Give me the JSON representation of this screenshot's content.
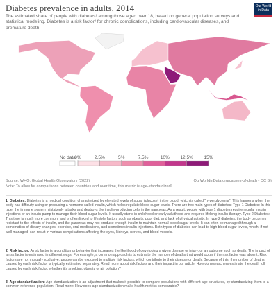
{
  "header": {
    "title": "Diabetes prevalence in adults, 2014",
    "subtitle": "The estimated share of people with diabetes¹ among those aged over 18, based on general population surveys and statistical modeling. Diabetes is a risk factor² for chronic complications, including cardiovascular diseases, and premature death.",
    "logo": "Our World in Data"
  },
  "legend": {
    "no_data": "No data",
    "no_data_color": "#ffffff",
    "bins": [
      {
        "value": 0,
        "label": "0%"
      },
      {
        "value": 2.5,
        "label": "2.5%"
      },
      {
        "value": 5,
        "label": "5%"
      },
      {
        "value": 7.5,
        "label": "7.5%"
      },
      {
        "value": 10,
        "label": "10%"
      },
      {
        "value": 12.5,
        "label": "12.5%"
      },
      {
        "value": 15,
        "label": "15%"
      }
    ],
    "colors": [
      "#fde0e6",
      "#f7b9c9",
      "#ef8fad",
      "#e0609a",
      "#c2378c",
      "#8e1a78"
    ]
  },
  "footer": {
    "source": "Source: WHO, Global Health Observatory (2022)",
    "url": "OurWorldinData.org/causes-of-death • CC BY",
    "note": "Note: To allow for comparisons between countries and over time, this metric is age-standardized³."
  },
  "footnotes": [
    {
      "label": "1. Diabetes:",
      "text": "Diabetes is a medical condition characterized by elevated levels of sugar (glucose) in the blood, which is called \"hyperglycemia\". This happens when the body has difficulty using or producing a hormone called insulin, which helps regulate blood sugar levels. There are two main types of diabetes: Type 1 Diabetes: In this type, the immune system mistakenly attacks and destroys the insulin-producing cells in the pancreas. As a result, people with type 1 diabetes require regular insulin injections or an insulin pump to manage their blood sugar levels. It usually starts in childhood or early adulthood and requires lifelong insulin therapy. Type 2 Diabetes: This type is much more common, and is often linked to lifestyle factors such as obesity, poor diet, and lack of physical activity. In type 2 diabetes, the body becomes resistant to the effects of insulin, and the pancreas may not produce enough insulin to maintain normal blood sugar levels. It can often be managed through a combination of dietary changes, exercise, oral medications, and sometimes insulin injections. Both types of diabetes can lead to high blood sugar levels, which, if not well managed, can result in various complications affecting the eyes, kidneys, nerves, and blood vessels."
    },
    {
      "label": "2. Risk factor:",
      "text": "A risk factor is a condition or behavior that increases the likelihood of developing a given disease or injury, or an outcome such as death. The impact of a risk factor is estimated in different ways. For example, a common approach is to estimate the number of deaths that would occur if the risk factor was absent. Risk factors are not mutually exclusive: people can be exposed to multiple risk factors, which contribute to their disease or death. Because of this, the number of deaths caused by each risk factor is typically estimated separately. Read more about risk factors and their impact in our article: How do researchers estimate the death toll caused by each risk factor, whether it's smoking, obesity or air pollution?"
    },
    {
      "label": "3. Age standardization:",
      "text": "Age standardization is an adjustment that makes it possible to compare populations with different age structures, by standardizing them to a common reference population. Read more: How does age standardization make health metrics comparable?"
    }
  ]
}
